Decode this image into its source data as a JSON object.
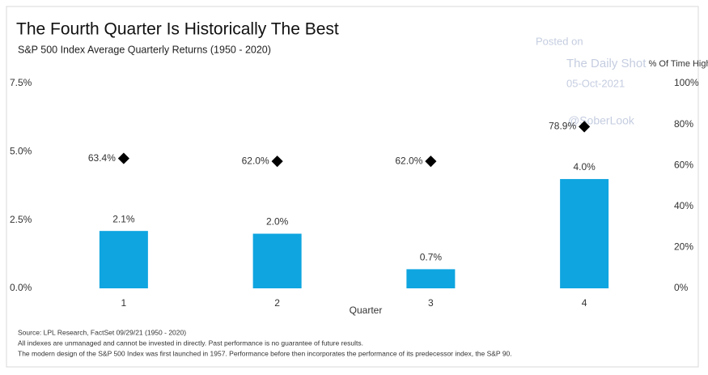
{
  "chart_data": {
    "type": "bar",
    "title": "The Fourth Quarter Is Historically The Best",
    "subtitle": "S&P 500 Index Average Quarterly Returns (1950 - 2020)",
    "x_label": "Quarter",
    "y2_label": "% Of Time Higher",
    "categories": [
      "1",
      "2",
      "3",
      "4"
    ],
    "series": [
      {
        "type": "bar",
        "color": "#0ea5e0",
        "values": [
          2.1,
          2.0,
          0.7,
          4.0
        ],
        "value_labels": [
          "2.1%",
          "2.0%",
          "0.7%",
          "4.0%"
        ]
      },
      {
        "type": "scatter",
        "axis": "y2",
        "color": "#000000",
        "values": [
          63.4,
          62.0,
          62.0,
          78.9
        ],
        "value_labels": [
          "63.4%",
          "62.0%",
          "62.0%",
          "78.9%"
        ]
      }
    ],
    "ylim": [
      0,
      7.5
    ],
    "yticks": [
      {
        "value": 0,
        "label": "0.0%"
      },
      {
        "value": 2.5,
        "label": "2.5%"
      },
      {
        "value": 5,
        "label": "5.0%"
      },
      {
        "value": 7.5,
        "label": "7.5%"
      }
    ],
    "y2lim": [
      0,
      100
    ],
    "y2ticks": [
      {
        "value": 0,
        "label": "0%"
      },
      {
        "value": 20,
        "label": "20%"
      },
      {
        "value": 40,
        "label": "40%"
      },
      {
        "value": 60,
        "label": "60%"
      },
      {
        "value": 80,
        "label": "80%"
      },
      {
        "value": 100,
        "label": "100%"
      }
    ],
    "grid": false,
    "annotations": [
      "Posted on",
      "The Daily Shot",
      "05-Oct-2021",
      "@SoberLook"
    ],
    "footnotes": [
      "Source: LPL Research, FactSet 09/29/21 (1950 - 2020)",
      "All indexes are unmanaged and cannot be invested in directly. Past performance is no guarantee of future results.",
      "The modern design of the S&P 500 Index was first launched in 1957. Performance before then incorporates the performance of its  predecessor index, the S&P 90."
    ]
  }
}
